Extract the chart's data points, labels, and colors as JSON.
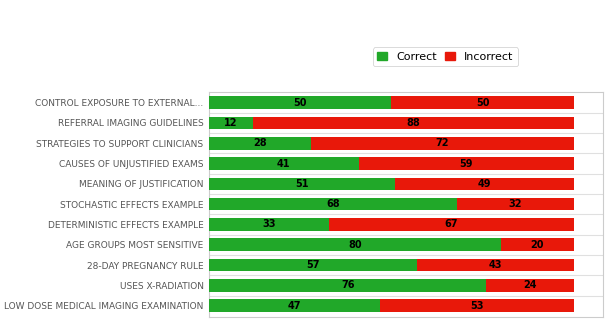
{
  "categories": [
    "LOW DOSE MEDICAL IMAGING EXAMINATION",
    "USES X-RADIATION",
    "28-DAY PREGNANCY RULE",
    "AGE GROUPS MOST SENSITIVE",
    "DETERMINISTIC EFFECTS EXAMPLE",
    "STOCHASTIC EFFECTS EXAMPLE",
    "MEANING OF JUSTIFICATION",
    "CAUSES OF UNJUSTIFIED EXAMS",
    "STRATEGIES TO SUPPORT CLINICIANS",
    "REFERRAL IMAGING GUIDELINES",
    "CONTROL EXPOSURE TO EXTERNAL..."
  ],
  "correct": [
    47,
    76,
    57,
    80,
    33,
    68,
    51,
    41,
    28,
    12,
    50
  ],
  "incorrect": [
    53,
    24,
    43,
    20,
    67,
    32,
    49,
    59,
    72,
    88,
    50
  ],
  "correct_color": "#21a829",
  "incorrect_color": "#e8180a",
  "background_color": "#ffffff",
  "legend_correct": "Correct",
  "legend_incorrect": "Incorrect",
  "bar_height": 0.62,
  "tick_fontsize": 6.5,
  "value_fontsize": 7.0,
  "legend_fontsize": 8.0,
  "figsize": [
    6.07,
    3.21
  ],
  "dpi": 100,
  "xlim_max": 108,
  "border_color": "#cccccc",
  "separator_color": "#e0e0e0"
}
